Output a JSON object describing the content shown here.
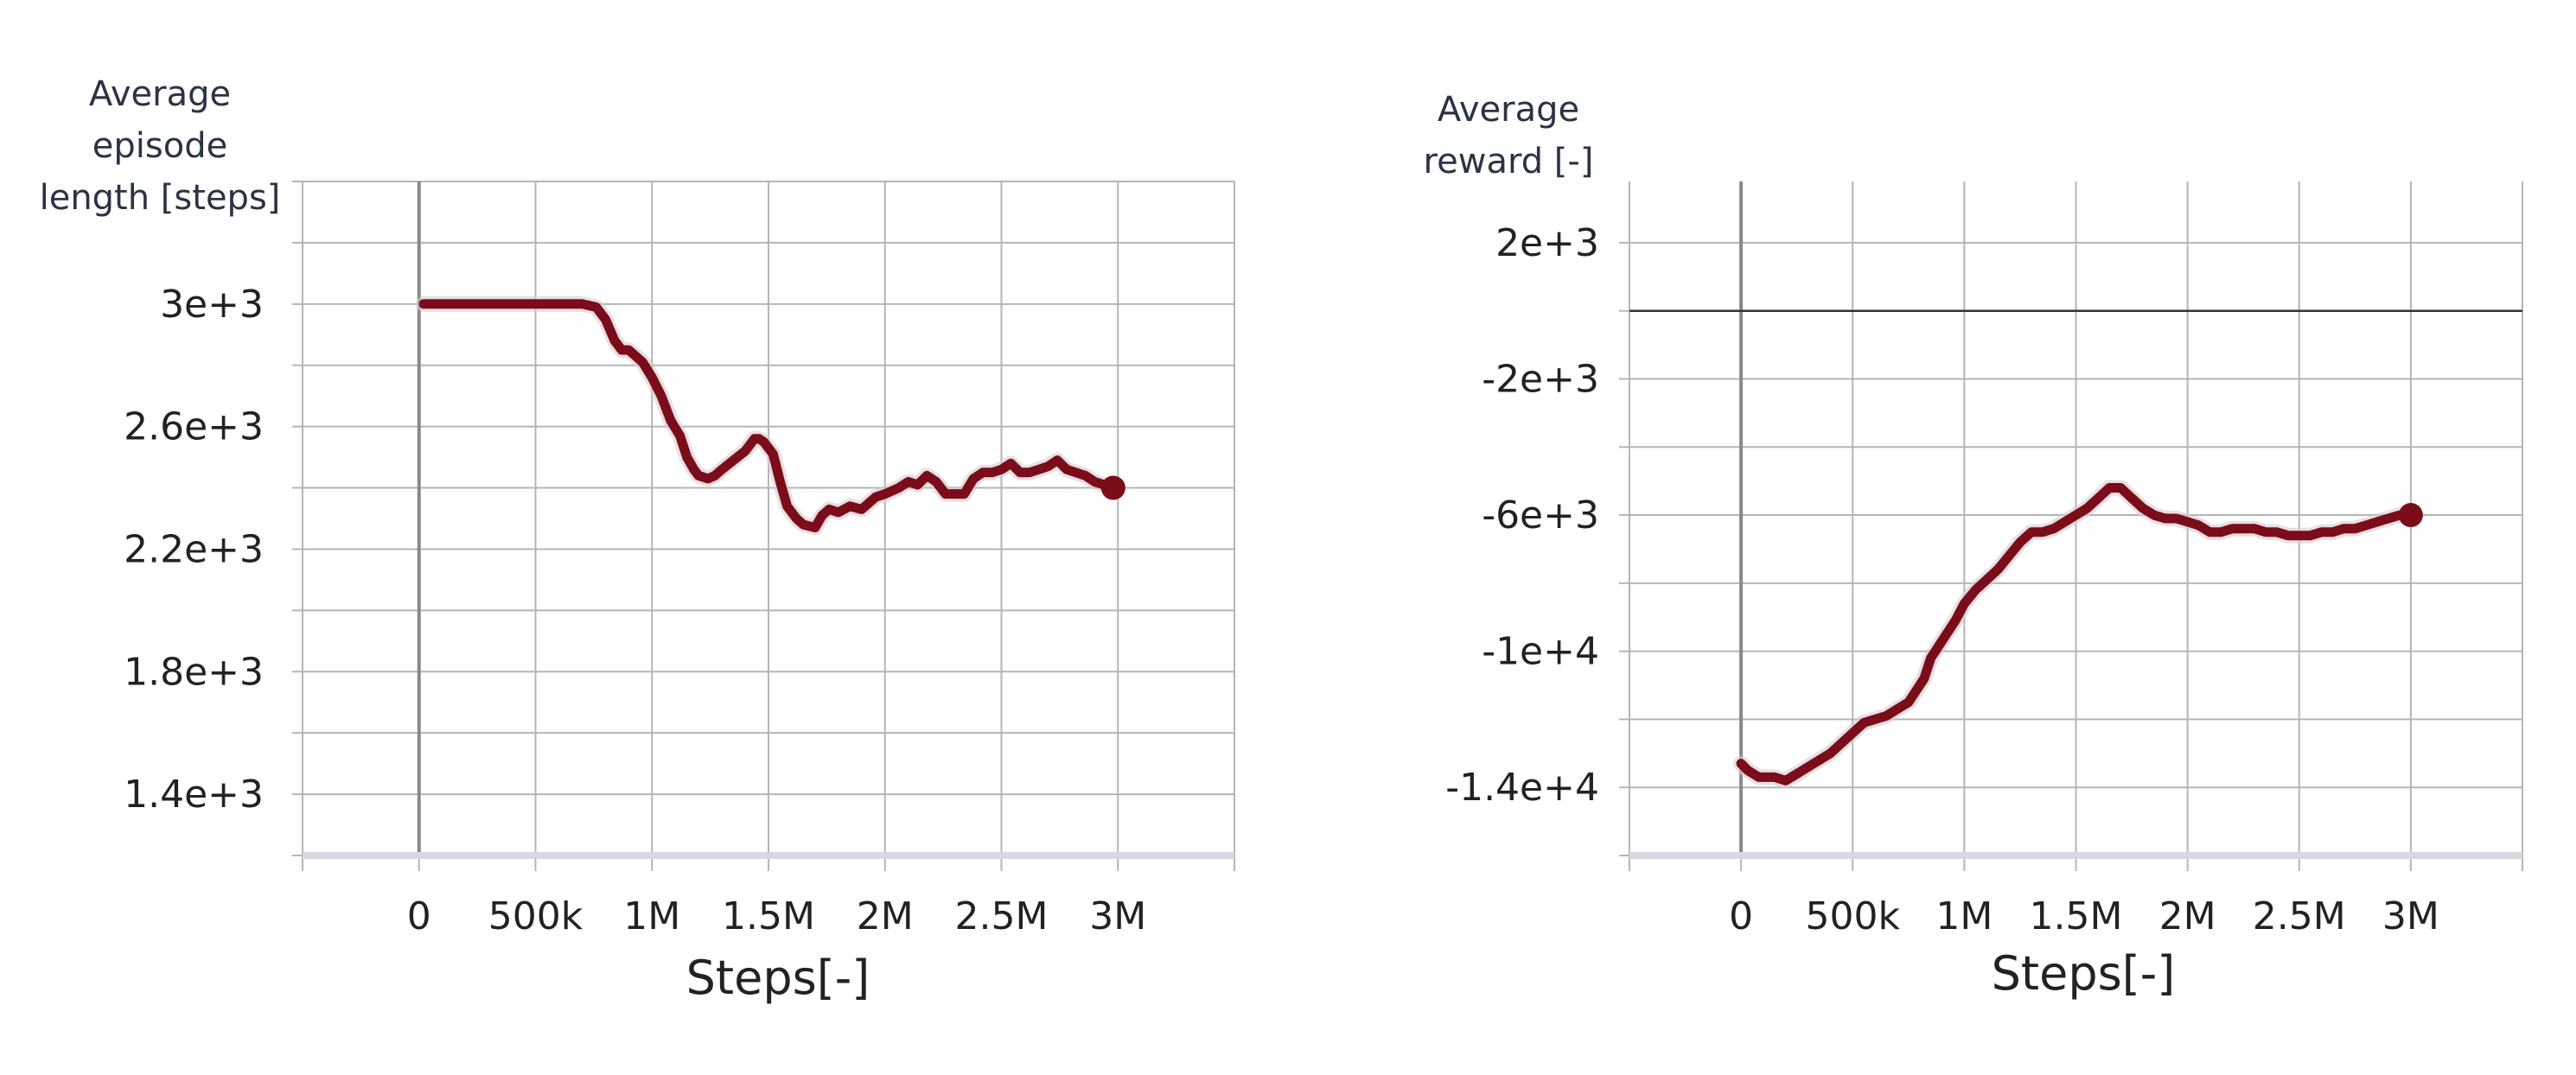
{
  "charts": [
    {
      "ylabel_lines": [
        "Average",
        "episode",
        "length [steps]"
      ],
      "xlabel": "Steps[-]"
    },
    {
      "ylabel_lines": [
        "Average",
        "reward [-]"
      ],
      "xlabel": "Steps[-]"
    }
  ],
  "chart_data": [
    {
      "type": "line",
      "title": "",
      "xlabel": "Steps[-]",
      "ylabel": "Average episode length [steps]",
      "xlim": [
        -500000,
        3500000
      ],
      "ylim": [
        1200,
        3400
      ],
      "xticks": [
        0,
        500000,
        1000000,
        1500000,
        2000000,
        2500000,
        3000000
      ],
      "xtick_labels": [
        "0",
        "500k",
        "1M",
        "1.5M",
        "2M",
        "2.5M",
        "3M"
      ],
      "yticks": [
        1400,
        1800,
        2200,
        2600,
        3000
      ],
      "ytick_labels": [
        "1.4e+3",
        "1.8e+3",
        "2.2e+3",
        "2.6e+3",
        "3e+3"
      ],
      "grid": true,
      "color": "#7b0c1a",
      "series": [
        {
          "x": [
            20000,
            100000,
            300000,
            500000,
            700000,
            760000,
            800000,
            840000,
            870000,
            900000,
            960000,
            1000000,
            1040000,
            1080000,
            1120000,
            1150000,
            1180000,
            1200000,
            1240000,
            1270000,
            1300000,
            1350000,
            1400000,
            1440000,
            1460000,
            1480000,
            1520000,
            1550000,
            1580000,
            1620000,
            1650000,
            1700000,
            1730000,
            1760000,
            1800000,
            1850000,
            1900000,
            1960000,
            2000000,
            2060000,
            2100000,
            2140000,
            2180000,
            2220000,
            2260000,
            2300000,
            2340000,
            2380000,
            2420000,
            2460000,
            2500000,
            2540000,
            2580000,
            2620000,
            2660000,
            2700000,
            2740000,
            2780000,
            2820000,
            2860000,
            2900000,
            2940000,
            2980000
          ],
          "y": [
            3000,
            3000,
            3000,
            3000,
            3000,
            2990,
            2950,
            2880,
            2850,
            2850,
            2810,
            2760,
            2700,
            2620,
            2570,
            2500,
            2460,
            2440,
            2430,
            2440,
            2460,
            2490,
            2520,
            2560,
            2560,
            2550,
            2510,
            2420,
            2340,
            2300,
            2280,
            2270,
            2310,
            2330,
            2320,
            2340,
            2330,
            2370,
            2380,
            2400,
            2420,
            2410,
            2440,
            2420,
            2380,
            2380,
            2380,
            2430,
            2450,
            2450,
            2460,
            2480,
            2450,
            2450,
            2460,
            2470,
            2490,
            2460,
            2450,
            2440,
            2420,
            2410,
            2400
          ]
        }
      ]
    },
    {
      "type": "line",
      "title": "",
      "xlabel": "Steps[-]",
      "ylabel": "Average reward [-]",
      "xlim": [
        -500000,
        3500000
      ],
      "ylim": [
        -16000,
        3800
      ],
      "xticks": [
        0,
        500000,
        1000000,
        1500000,
        2000000,
        2500000,
        3000000
      ],
      "xtick_labels": [
        "0",
        "500k",
        "1M",
        "1.5M",
        "2M",
        "2.5M",
        "3M"
      ],
      "yticks": [
        -14000,
        -10000,
        -6000,
        -2000,
        2000
      ],
      "ytick_labels": [
        "-1.4e+4",
        "-1e+4",
        "-6e+3",
        "-2e+3",
        "2e+3"
      ],
      "grid": true,
      "zero_line": 0,
      "color": "#7b0c1a",
      "series": [
        {
          "x": [
            0,
            30000,
            80000,
            150000,
            200000,
            250000,
            300000,
            350000,
            400000,
            450000,
            500000,
            550000,
            600000,
            650000,
            700000,
            750000,
            780000,
            820000,
            850000,
            880000,
            920000,
            960000,
            1000000,
            1050000,
            1100000,
            1150000,
            1200000,
            1250000,
            1300000,
            1350000,
            1400000,
            1450000,
            1500000,
            1550000,
            1600000,
            1650000,
            1700000,
            1750000,
            1800000,
            1850000,
            1900000,
            1950000,
            2000000,
            2050000,
            2100000,
            2150000,
            2200000,
            2250000,
            2300000,
            2350000,
            2400000,
            2450000,
            2500000,
            2550000,
            2600000,
            2650000,
            2700000,
            2750000,
            2800000,
            2850000,
            2900000,
            2950000,
            3000000
          ],
          "y": [
            -13300,
            -13500,
            -13700,
            -13700,
            -13800,
            -13600,
            -13400,
            -13200,
            -13000,
            -12700,
            -12400,
            -12100,
            -12000,
            -11900,
            -11700,
            -11500,
            -11200,
            -10800,
            -10200,
            -9900,
            -9500,
            -9100,
            -8600,
            -8200,
            -7900,
            -7600,
            -7200,
            -6800,
            -6500,
            -6500,
            -6400,
            -6200,
            -6000,
            -5800,
            -5500,
            -5200,
            -5200,
            -5500,
            -5800,
            -6000,
            -6100,
            -6100,
            -6200,
            -6300,
            -6500,
            -6500,
            -6400,
            -6400,
            -6400,
            -6500,
            -6500,
            -6600,
            -6600,
            -6600,
            -6500,
            -6500,
            -6400,
            -6400,
            -6300,
            -6200,
            -6100,
            -6000,
            -6000
          ]
        }
      ]
    }
  ]
}
